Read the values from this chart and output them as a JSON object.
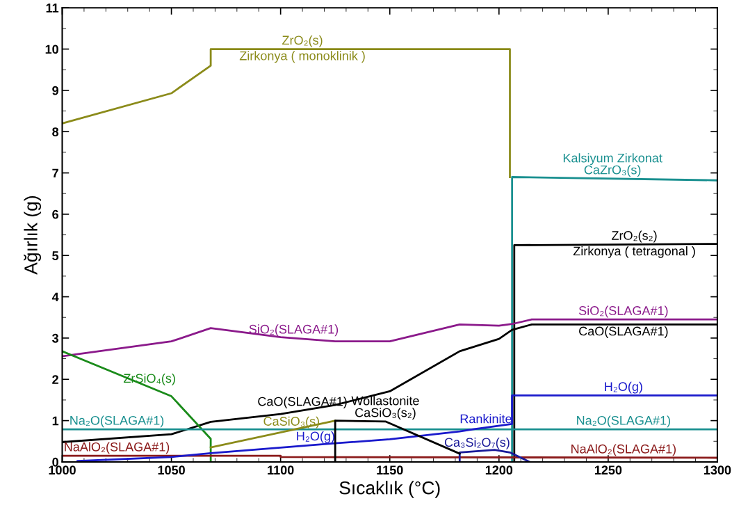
{
  "chart_data": {
    "type": "line",
    "xlabel": "Sıcaklık (°C)",
    "ylabel": "Ağırlık (g)",
    "xlim": [
      1000,
      1300
    ],
    "xticks": [
      1000,
      1050,
      1100,
      1150,
      1200,
      1250,
      1300
    ],
    "ylim": [
      0,
      11
    ],
    "yticks": [
      0,
      1,
      2,
      3,
      4,
      5,
      6,
      7,
      8,
      9,
      10,
      11
    ],
    "grid": false,
    "legend": false,
    "marker": "none",
    "line_style": "solid",
    "series": [
      {
        "color": "#8b8b1a",
        "x": [
          1000,
          1050,
          1068,
          1068,
          1205,
          1205
        ],
        "values": [
          8.2,
          8.93,
          9.6,
          10.0,
          10.0,
          6.9
        ]
      },
      {
        "color": "#1a9090",
        "x": [
          1206,
          1206,
          1300
        ],
        "values": [
          0,
          6.9,
          6.82
        ]
      },
      {
        "color": "#000000",
        "x": [
          1207,
          1207,
          1300
        ],
        "values": [
          0,
          5.25,
          5.28
        ]
      },
      {
        "color": "#8b1a8b",
        "x": [
          1000,
          1050,
          1068,
          1100,
          1125,
          1150,
          1182,
          1200,
          1206,
          1215,
          1300
        ],
        "values": [
          2.56,
          2.92,
          3.24,
          3.02,
          2.92,
          2.92,
          3.33,
          3.3,
          3.34,
          3.45,
          3.45
        ]
      },
      {
        "color": "#000000",
        "x": [
          1000,
          1050,
          1068,
          1100,
          1125,
          1150,
          1182,
          1200,
          1206,
          1215,
          1300
        ],
        "values": [
          0.48,
          0.67,
          0.97,
          1.16,
          1.38,
          1.71,
          2.68,
          2.98,
          3.2,
          3.33,
          3.33
        ]
      },
      {
        "color": "#1a8b1a",
        "x": [
          1000,
          1050,
          1068,
          1068
        ],
        "values": [
          2.68,
          1.59,
          0.56,
          0
        ]
      },
      {
        "color": "#1a9090",
        "x": [
          1000,
          1300
        ],
        "values": [
          0.79,
          0.79
        ]
      },
      {
        "color": "#8b1a1a",
        "x": [
          1000,
          1100,
          1100,
          1300
        ],
        "values": [
          0.15,
          0.15,
          0.12,
          0.1
        ]
      },
      {
        "color": "#1a1acc",
        "x": [
          1007,
          1050,
          1068,
          1125,
          1150,
          1182,
          1188,
          1206,
          1206,
          1300
        ],
        "values": [
          0.02,
          0.12,
          0.21,
          0.45,
          0.55,
          0.74,
          0.79,
          0.92,
          1.61,
          1.61
        ]
      },
      {
        "color": "#1a1a99",
        "x": [
          1182,
          1182,
          1198,
          1205,
          1214
        ],
        "values": [
          0,
          0.23,
          0.29,
          0.23,
          0
        ]
      },
      {
        "color": "#8b8b1a",
        "x": [
          1068,
          1125
        ],
        "values": [
          0.35,
          1.0
        ]
      },
      {
        "color": "#000000",
        "x": [
          1125,
          1125,
          1148,
          1182
        ],
        "values": [
          0,
          1.0,
          0.98,
          0.2
        ]
      }
    ],
    "annotations": [
      {
        "text": "ZrO₂(s)",
        "x": 1110,
        "y": 10.0
      },
      {
        "text": "Zirkonya ( monoklinik )",
        "x": 1110,
        "y": 10.0
      },
      {
        "text": "Kalsiyum Zirkonat",
        "x": 1252,
        "y": 6.86
      },
      {
        "text": "CaZrO₃(s)",
        "x": 1252,
        "y": 6.86
      },
      {
        "text": "ZrO₂(s₂)",
        "x": 1262,
        "y": 5.27
      },
      {
        "text": "Zirkonya ( tetragonal )",
        "x": 1262,
        "y": 5.27
      },
      {
        "text": "SiO₂(SLAGA#1)",
        "x": 1257,
        "y": 3.45
      },
      {
        "text": "CaO(SLAGA#1)",
        "x": 1257,
        "y": 3.33
      },
      {
        "text": "H₂O(g)",
        "x": 1257,
        "y": 1.61
      },
      {
        "text": "Na₂O(SLAGA#1)",
        "x": 1257,
        "y": 0.79
      },
      {
        "text": "NaAlO₂(SLAGA#1)",
        "x": 1257,
        "y": 0.1
      },
      {
        "text": "SiO₂(SLAGA#1)",
        "x": 1106,
        "y": 3.0
      },
      {
        "text": "ZrSiO₄(s)",
        "x": 1040,
        "y": 1.81
      },
      {
        "text": "CaO(SLAGA#1)",
        "x": 1110,
        "y": 1.25
      },
      {
        "text": "Wollastonite",
        "x": 1148,
        "y": 0.98
      },
      {
        "text": "CaSiO₃(s₂)",
        "x": 1148,
        "y": 0.98
      },
      {
        "text": "Rankinite",
        "x": 1194,
        "y": 0.83
      },
      {
        "text": "Na₂O(SLAGA#1)",
        "x": 1025,
        "y": 0.79
      },
      {
        "text": "CaSiO₃(s)",
        "x": 1105,
        "y": 0.77
      },
      {
        "text": "H₂O(g)",
        "x": 1116,
        "y": 0.41
      },
      {
        "text": "Ca₃Si₂O₇(s)",
        "x": 1190,
        "y": 0.26
      },
      {
        "text": "NaAlO₂(SLAGA#1)",
        "x": 1025,
        "y": 0.15
      }
    ]
  }
}
